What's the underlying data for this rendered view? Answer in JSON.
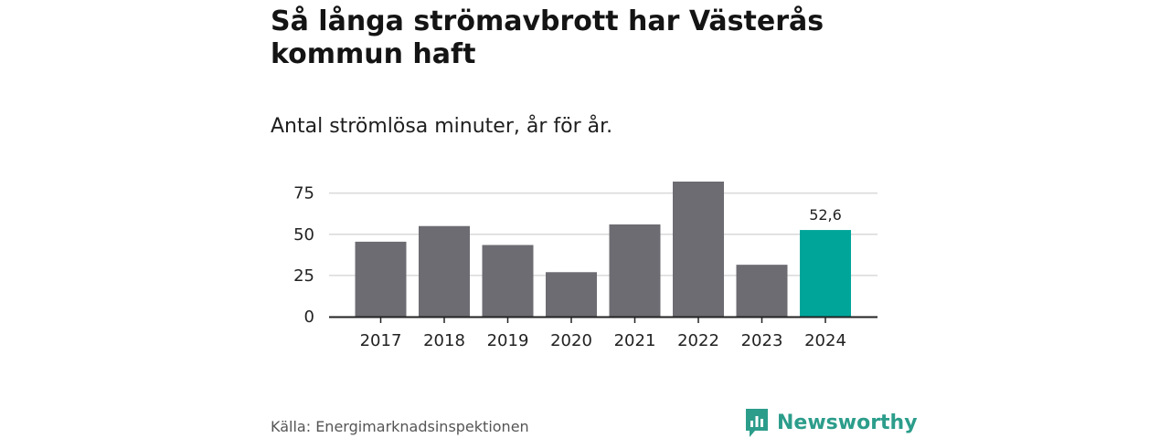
{
  "header": {
    "title": "Så långa strömavbrott har Västerås kommun haft",
    "subtitle": "Antal strömlösa minuter, år för år."
  },
  "footer": {
    "source": "Källa: Energimarknadsinspektionen",
    "brand": "Newsworthy"
  },
  "colors": {
    "bar": "#6d6c72",
    "highlight": "#00a59a",
    "grid": "#d9d9d9",
    "axis": "#222222",
    "brand": "#2c9d8b"
  },
  "chart_data": {
    "type": "bar",
    "title": "Så långa strömavbrott har Västerås kommun haft",
    "subtitle": "Antal strömlösa minuter, år för år.",
    "xlabel": "",
    "ylabel": "",
    "categories": [
      "2017",
      "2018",
      "2019",
      "2020",
      "2021",
      "2022",
      "2023",
      "2024"
    ],
    "values": [
      45.5,
      55,
      43.5,
      27,
      56,
      82,
      31.5,
      52.6
    ],
    "ylim": [
      0,
      82
    ],
    "yticks": [
      0,
      25,
      50,
      75
    ],
    "highlight_index": 7,
    "data_labels": [
      {
        "index": 7,
        "text": "52,6"
      }
    ],
    "grid": true
  }
}
